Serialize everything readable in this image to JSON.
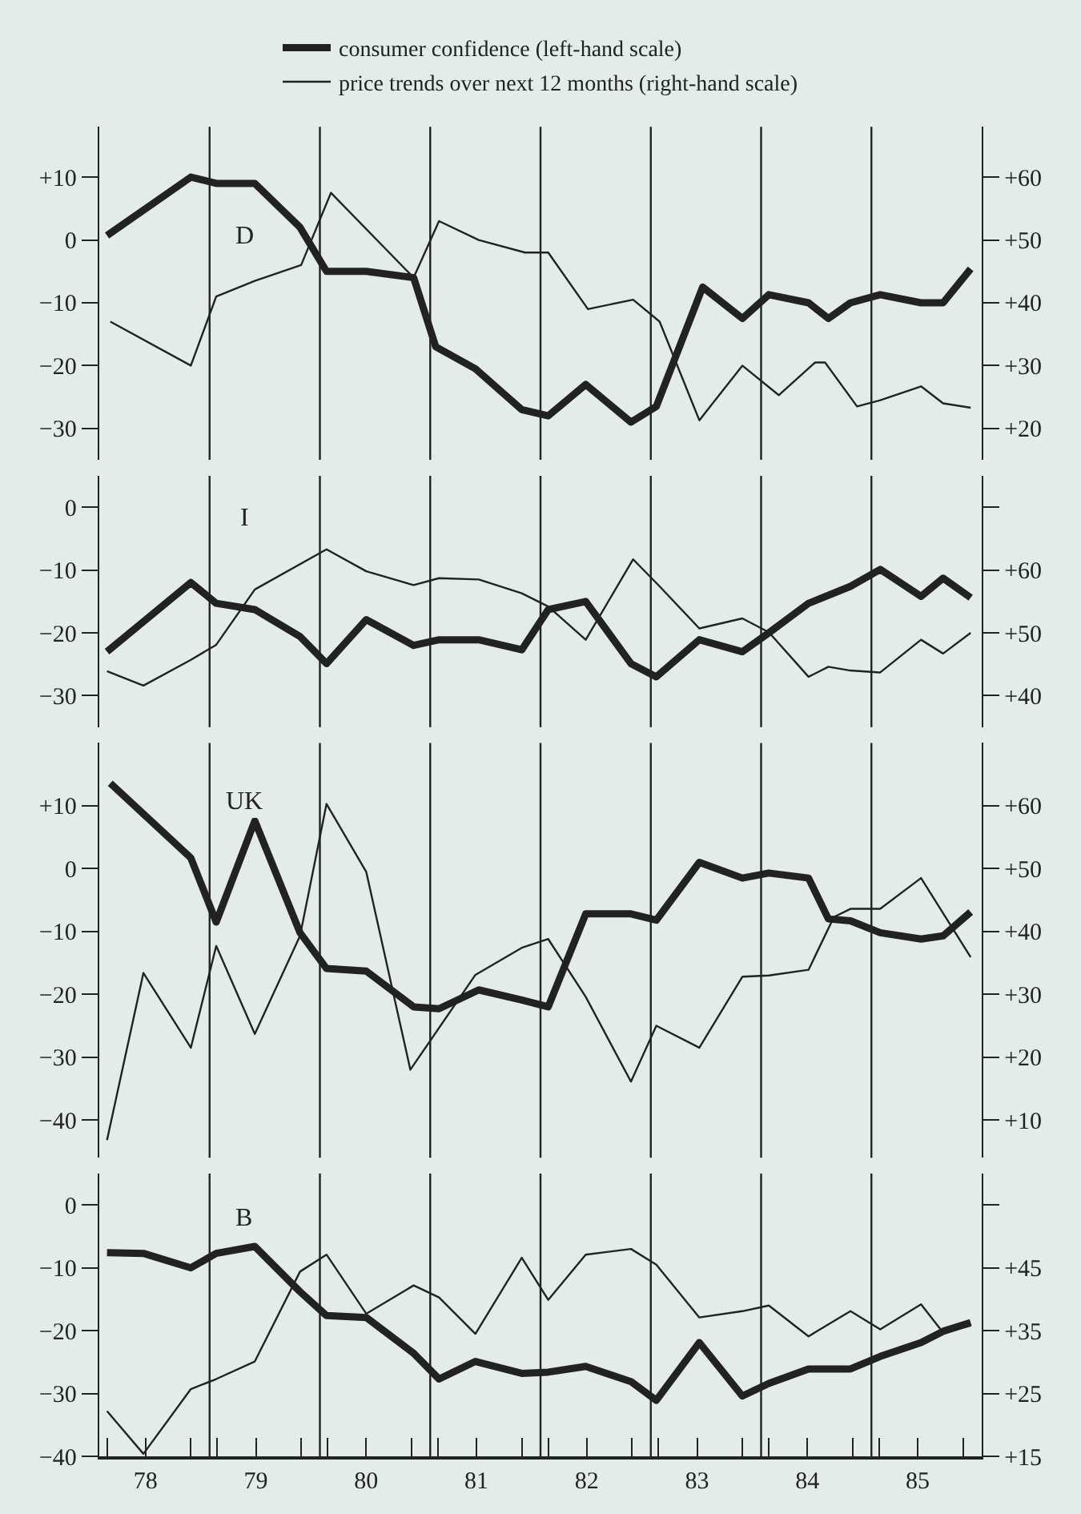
{
  "chart_data": [
    {
      "type": "line",
      "title": "D",
      "legend": "top",
      "tick_labels": "y",
      "xlim": [
        77.58,
        85.58
      ],
      "ylim": [
        -35,
        18
      ],
      "yticks": [
        {
          "value": 10,
          "label": "+10"
        },
        0,
        {
          "value": -10,
          "label": "−10"
        },
        {
          "value": -20,
          "label": "−20"
        },
        {
          "value": -30,
          "label": "−30"
        }
      ],
      "y2lim": [
        15,
        68
      ],
      "y2ticks": [
        {
          "value": 60,
          "label": "+60"
        },
        {
          "value": 50,
          "label": "+50"
        },
        {
          "value": 40,
          "label": "+40"
        },
        {
          "value": 30,
          "label": "+30"
        },
        {
          "value": 20,
          "label": "+20"
        }
      ],
      "ref_lines": [
        {
          "axis": "x",
          "value": 78.58
        },
        {
          "axis": "x",
          "value": 79.58
        },
        {
          "axis": "x",
          "value": 80.58
        },
        {
          "axis": "x",
          "value": 81.58
        },
        {
          "axis": "x",
          "value": 82.58
        },
        {
          "axis": "x",
          "value": 83.58
        },
        {
          "axis": "x",
          "value": 84.58
        }
      ],
      "series": [
        {
          "name": "consumer confidence (left-hand scale)",
          "color": "#222222",
          "x": [
            77.65,
            78.41,
            78.64,
            78.99,
            79.4,
            79.64,
            80.0,
            80.43,
            80.63,
            80.99,
            81.41,
            81.65,
            81.99,
            82.4,
            82.63,
            83.05,
            83.41,
            83.65,
            84.01,
            84.19,
            84.39,
            84.66,
            85.03,
            85.23,
            85.48
          ],
          "values": [
            0.7,
            10,
            9,
            9,
            2,
            -5,
            -5,
            -6,
            -17,
            -20.5,
            -27,
            -28,
            -23,
            -29,
            -26.5,
            -7.5,
            -12.5,
            -8.7,
            -10,
            -12.5,
            -10,
            -8.7,
            -10,
            -10,
            -4.6
          ]
        },
        {
          "name": "price trends over next 12 months (right-hand scale)",
          "color": "#222222",
          "axis": "y2",
          "x": [
            77.68,
            78.41,
            78.64,
            78.99,
            79.41,
            79.68,
            80.43,
            80.66,
            81.02,
            81.44,
            81.65,
            82.01,
            82.42,
            82.66,
            83.02,
            83.41,
            83.74,
            84.07,
            84.16,
            84.45,
            84.66,
            85.03,
            85.23,
            85.48
          ],
          "values": [
            37,
            30,
            41,
            43.5,
            46,
            57.5,
            44,
            53,
            50,
            48,
            48,
            39,
            40.5,
            37,
            21.3,
            30,
            25.3,
            30.5,
            30.5,
            23.5,
            24.5,
            26.7,
            24,
            23.3
          ]
        }
      ]
    },
    {
      "type": "line",
      "title": "I",
      "tick_labels": "y",
      "xlim": [
        77.58,
        85.58
      ],
      "ylim": [
        -35,
        5
      ],
      "yticks": [
        0,
        {
          "value": -10,
          "label": "−10"
        },
        {
          "value": -20,
          "label": "−20"
        },
        {
          "value": -30,
          "label": "−30"
        }
      ],
      "y2lim": [
        35,
        75
      ],
      "y2ticks": [
        {
          "value": 70,
          "label": null
        },
        {
          "value": 60,
          "label": "+60"
        },
        {
          "value": 50,
          "label": "+50"
        },
        {
          "value": 40,
          "label": "+40"
        }
      ],
      "ref_lines": [
        {
          "axis": "x",
          "value": 78.58
        },
        {
          "axis": "x",
          "value": 79.58
        },
        {
          "axis": "x",
          "value": 80.58
        },
        {
          "axis": "x",
          "value": 81.58
        },
        {
          "axis": "x",
          "value": 82.58
        },
        {
          "axis": "x",
          "value": 83.58
        },
        {
          "axis": "x",
          "value": 84.58
        }
      ],
      "series": [
        {
          "color": "#222222",
          "x": [
            77.65,
            78.41,
            78.64,
            78.99,
            79.4,
            79.64,
            80.0,
            80.43,
            80.66,
            81.02,
            81.41,
            81.65,
            81.99,
            82.4,
            82.63,
            83.02,
            83.41,
            83.65,
            84.01,
            84.39,
            84.66,
            85.03,
            85.23,
            85.48
          ],
          "values": [
            -23,
            -12,
            -15.3,
            -16.3,
            -20.6,
            -24.9,
            -17.9,
            -22,
            -21.1,
            -21.1,
            -22.7,
            -16.3,
            -15,
            -24.9,
            -27,
            -21.1,
            -23,
            -20,
            -15.3,
            -12.6,
            -9.9,
            -14.2,
            -11.3,
            -14.4
          ]
        },
        {
          "color": "#222222",
          "axis": "y2",
          "x": [
            77.65,
            77.98,
            78.41,
            78.64,
            78.99,
            79.64,
            80.0,
            80.43,
            80.66,
            81.02,
            81.41,
            81.65,
            81.99,
            82.42,
            82.66,
            83.02,
            83.41,
            83.65,
            84.01,
            84.19,
            84.39,
            84.66,
            85.03,
            85.23,
            85.48
          ],
          "values": [
            43.9,
            41.6,
            45.7,
            48.1,
            56.9,
            63.3,
            59.8,
            57.6,
            58.7,
            58.5,
            56.3,
            54.2,
            48.9,
            61.7,
            57.4,
            50.7,
            52.3,
            50.1,
            43,
            44.6,
            44,
            43.7,
            48.9,
            46.7,
            50
          ]
        }
      ]
    },
    {
      "type": "line",
      "title": "UK",
      "tick_labels": "y",
      "xlim": [
        77.58,
        85.58
      ],
      "ylim": [
        -46,
        20
      ],
      "yticks": [
        {
          "value": 10,
          "label": "+10"
        },
        0,
        {
          "value": -10,
          "label": "−10"
        },
        {
          "value": -20,
          "label": "−20"
        },
        {
          "value": -30,
          "label": "−30"
        },
        {
          "value": -40,
          "label": "−40"
        }
      ],
      "y2lim": [
        4,
        70
      ],
      "y2ticks": [
        {
          "value": 60,
          "label": "+60"
        },
        {
          "value": 50,
          "label": "+50"
        },
        {
          "value": 40,
          "label": "+40"
        },
        {
          "value": 30,
          "label": "+30"
        },
        {
          "value": 20,
          "label": "+20"
        },
        {
          "value": 10,
          "label": "+10"
        }
      ],
      "ref_lines": [
        {
          "axis": "x",
          "value": 78.58
        },
        {
          "axis": "x",
          "value": 79.58
        },
        {
          "axis": "x",
          "value": 80.58
        },
        {
          "axis": "x",
          "value": 81.58
        },
        {
          "axis": "x",
          "value": 82.58
        },
        {
          "axis": "x",
          "value": 83.58
        },
        {
          "axis": "x",
          "value": 84.58
        }
      ],
      "series": [
        {
          "color": "#222222",
          "x": [
            77.68,
            78.41,
            78.64,
            78.99,
            79.4,
            79.64,
            80.0,
            80.43,
            80.66,
            81.02,
            81.41,
            81.65,
            81.99,
            82.4,
            82.63,
            83.02,
            83.41,
            83.65,
            84.01,
            84.19,
            84.39,
            84.66,
            85.03,
            85.23,
            85.48
          ],
          "values": [
            13.6,
            1.7,
            -8.5,
            7.6,
            -10.2,
            -15.9,
            -16.3,
            -22,
            -22.3,
            -19.3,
            -20.9,
            -22,
            -7.2,
            -7.2,
            -8.2,
            1,
            -1.5,
            -0.7,
            -1.5,
            -8,
            -8.3,
            -10.2,
            -11.2,
            -10.7,
            -6.9
          ]
        },
        {
          "color": "#222222",
          "axis": "y2",
          "x": [
            77.65,
            77.98,
            78.41,
            78.64,
            78.99,
            79.4,
            79.64,
            80.0,
            80.4,
            80.99,
            81.41,
            81.65,
            81.99,
            82.4,
            82.63,
            83.02,
            83.41,
            83.65,
            84.01,
            84.24,
            84.39,
            84.66,
            85.03,
            85.48
          ],
          "values": [
            6.8,
            33.4,
            21.5,
            37.7,
            23.7,
            39.3,
            60.3,
            49.5,
            18,
            33.1,
            37.4,
            38.8,
            29.6,
            16.1,
            25,
            21.5,
            32.8,
            33,
            33.9,
            42.3,
            43.6,
            43.6,
            48.5,
            35.9
          ]
        }
      ]
    },
    {
      "type": "line",
      "title": "B",
      "xlim": [
        77.58,
        85.58
      ],
      "xticks": [
        {
          "value": 77.65,
          "label": null
        },
        78,
        {
          "value": 78.41,
          "label": null
        },
        {
          "value": 78.65,
          "label": null
        },
        79,
        {
          "value": 79.41,
          "label": null
        },
        {
          "value": 79.65,
          "label": null
        },
        80,
        {
          "value": 80.41,
          "label": null
        },
        {
          "value": 80.65,
          "label": null
        },
        81,
        {
          "value": 81.41,
          "label": null
        },
        {
          "value": 81.65,
          "label": null
        },
        82,
        {
          "value": 82.41,
          "label": null
        },
        {
          "value": 82.65,
          "label": null
        },
        83,
        {
          "value": 83.41,
          "label": null
        },
        {
          "value": 83.65,
          "label": null
        },
        84,
        {
          "value": 84.41,
          "label": null
        },
        {
          "value": 84.65,
          "label": null
        },
        85,
        {
          "value": 85.41,
          "label": null
        }
      ],
      "ylim": [
        -40,
        5
      ],
      "yticks": [
        0,
        {
          "value": -10,
          "label": "−10"
        },
        {
          "value": -20,
          "label": "−20"
        },
        {
          "value": -30,
          "label": "−30"
        },
        {
          "value": -40,
          "label": "−40"
        }
      ],
      "y2lim": [
        15,
        60
      ],
      "y2ticks": [
        {
          "value": 55,
          "label": null
        },
        {
          "value": 45,
          "label": "+45"
        },
        {
          "value": 35,
          "label": "+35"
        },
        {
          "value": 25,
          "label": "+25"
        },
        {
          "value": 15,
          "label": "+15"
        }
      ],
      "ref_lines": [
        {
          "axis": "x",
          "value": 78.58
        },
        {
          "axis": "x",
          "value": 79.58
        },
        {
          "axis": "x",
          "value": 80.58
        },
        {
          "axis": "x",
          "value": 81.58
        },
        {
          "axis": "x",
          "value": 82.58
        },
        {
          "axis": "x",
          "value": 83.58
        },
        {
          "axis": "x",
          "value": 84.58
        }
      ],
      "series": [
        {
          "color": "#222222",
          "x": [
            77.65,
            77.98,
            78.41,
            78.64,
            78.99,
            79.4,
            79.64,
            80.0,
            80.43,
            80.66,
            80.99,
            81.41,
            81.65,
            81.99,
            82.4,
            82.63,
            83.02,
            83.41,
            83.65,
            84.01,
            84.39,
            84.66,
            85.03,
            85.23,
            85.48
          ],
          "values": [
            -7.6,
            -7.7,
            -10,
            -7.7,
            -6.6,
            -13.8,
            -17.6,
            -17.9,
            -23.6,
            -27.7,
            -24.9,
            -26.8,
            -26.6,
            -25.7,
            -28.1,
            -31.1,
            -21.9,
            -30.4,
            -28.4,
            -26.1,
            -26.1,
            -24.1,
            -21.9,
            -20.1,
            -18.7
          ]
        },
        {
          "color": "#222222",
          "axis": "y2",
          "x": [
            77.65,
            77.98,
            78.41,
            78.64,
            78.99,
            79.4,
            79.64,
            80.0,
            80.43,
            80.66,
            80.99,
            81.41,
            81.65,
            81.99,
            82.4,
            82.63,
            83.02,
            83.41,
            83.65,
            84.01,
            84.39,
            84.66,
            85.03,
            85.23,
            85.48
          ],
          "values": [
            22.2,
            15.4,
            25.7,
            27.3,
            30.1,
            44.4,
            47.1,
            37.7,
            42.2,
            40.3,
            34.5,
            46.6,
            39.9,
            47.1,
            48,
            45.5,
            37.1,
            38.1,
            39,
            34.1,
            38.1,
            35.2,
            39.2,
            34.7,
            35.8
          ]
        }
      ]
    }
  ]
}
